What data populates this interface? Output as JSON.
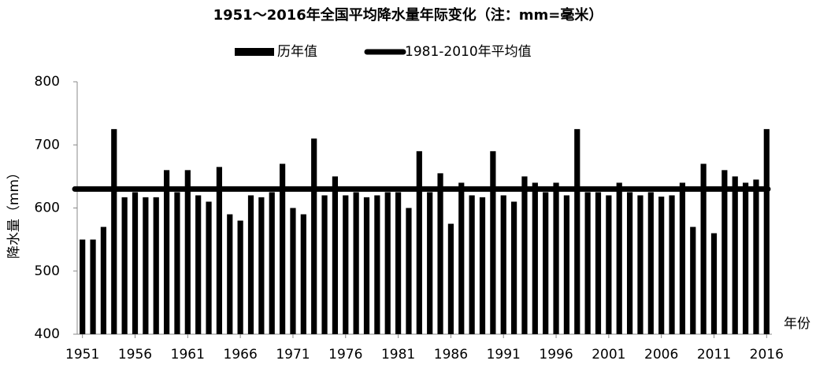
{
  "chart_data": {
    "type": "bar",
    "title": "1951～2016年全国平均降水量年际变化（注：mm=毫米）",
    "ylabel": "降水量（mm）",
    "xlabel": "年份",
    "categories": [
      "1951",
      null,
      null,
      null,
      null,
      "1956",
      null,
      null,
      null,
      null,
      "1961",
      null,
      null,
      null,
      null,
      "1966",
      null,
      null,
      null,
      null,
      "1971",
      null,
      null,
      null,
      null,
      "1976",
      null,
      null,
      null,
      null,
      "1981",
      null,
      null,
      null,
      null,
      "1986",
      null,
      null,
      null,
      null,
      "1991",
      null,
      null,
      null,
      null,
      "1996",
      null,
      null,
      null,
      null,
      "2001",
      null,
      null,
      null,
      null,
      "2006",
      null,
      null,
      null,
      null,
      "2011",
      null,
      null,
      null,
      null,
      "2016"
    ],
    "series": [
      {
        "name": "历年值",
        "color": "#000000",
        "values": [
          550,
          550,
          570,
          725,
          617,
          625,
          617,
          617,
          660,
          625,
          660,
          620,
          610,
          665,
          590,
          580,
          620,
          617,
          625,
          670,
          600,
          590,
          710,
          620,
          650,
          620,
          625,
          617,
          620,
          625,
          625,
          600,
          690,
          625,
          655,
          575,
          640,
          620,
          617,
          690,
          620,
          610,
          650,
          640,
          625,
          640,
          620,
          725,
          625,
          625,
          620,
          640,
          625,
          620,
          625,
          618,
          620,
          640,
          570,
          670,
          560,
          660,
          650,
          640,
          645,
          725
        ]
      }
    ],
    "reference_lines": [
      {
        "name": "1981-2010年平均值",
        "value": 630,
        "color": "#000000"
      }
    ],
    "ylim": [
      400,
      800
    ],
    "yticks": [
      400,
      500,
      600,
      700,
      800
    ],
    "grid": false
  }
}
